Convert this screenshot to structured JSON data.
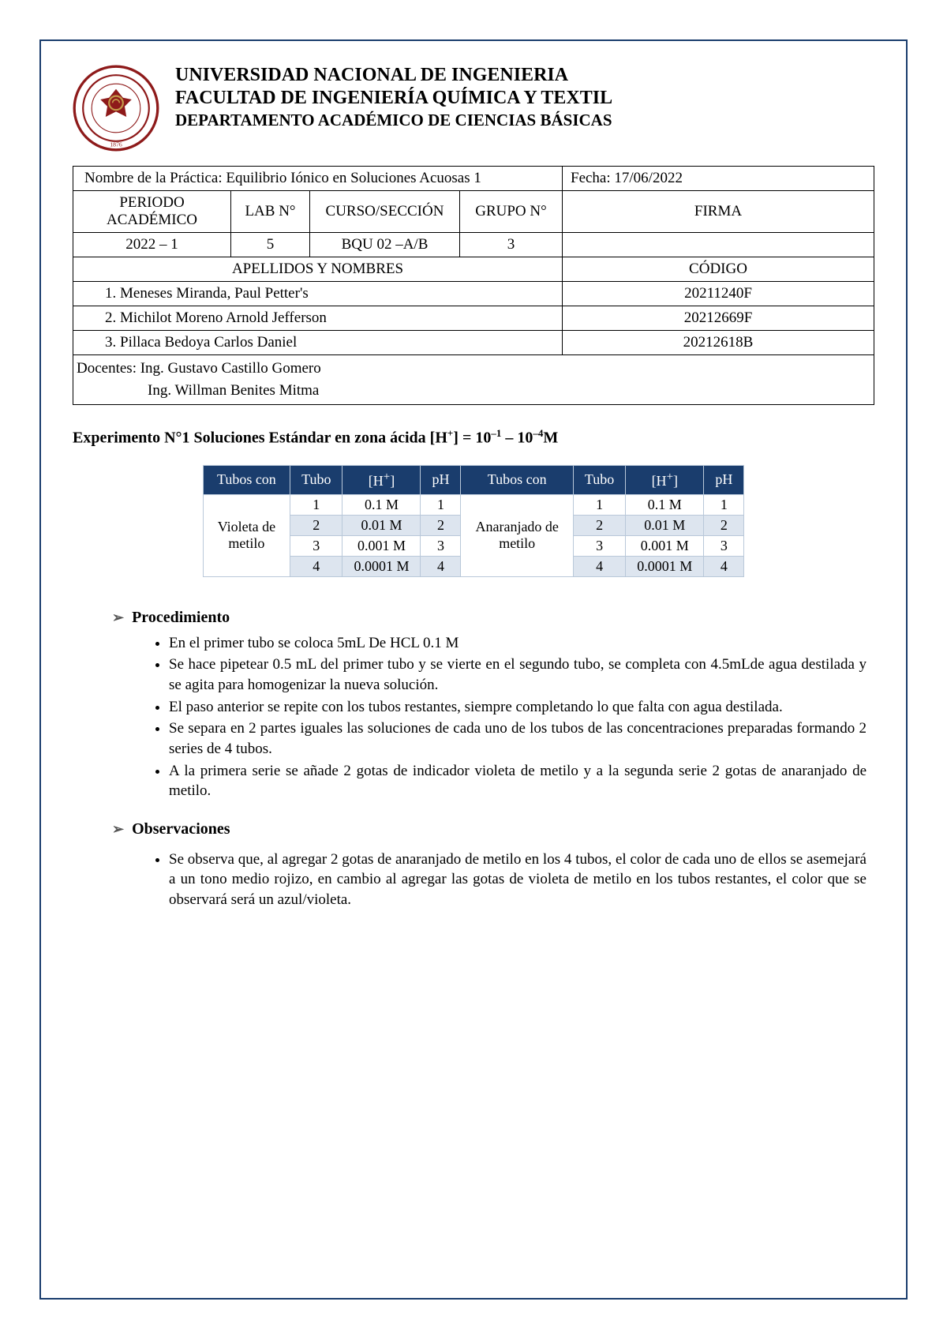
{
  "header": {
    "line1": "UNIVERSIDAD NACIONAL DE INGENIERIA",
    "line2": "FACULTAD DE INGENIERÍA QUÍMICA Y TEXTIL",
    "line3": "DEPARTAMENTO ACADÉMICO DE CIENCIAS BÁSICAS",
    "seal_colors": {
      "outer": "#8e1a1a",
      "inner": "#c49b4a",
      "ring_text": "#8e1a1a"
    }
  },
  "info": {
    "practice_label": "Nombre de la Práctica: Equilibrio Iónico en Soluciones Acuosas 1",
    "date_label": "Fecha: 17/06/2022",
    "periodo_head": "PERIODO ACADÉMICO",
    "lab_head": "LAB N°",
    "curso_head": "CURSO/SECCIÓN",
    "grupo_head": "GRUPO N°",
    "firma_head": "FIRMA",
    "periodo_val": "2022 – 1",
    "lab_val": "5",
    "curso_val": "BQU 02 –A/B",
    "grupo_val": "3",
    "names_head": "APELLIDOS Y NOMBRES",
    "codigo_head": "CÓDIGO",
    "students": [
      {
        "n": "1.   Meneses Miranda, Paul Petter's",
        "code": "20211240F"
      },
      {
        "n": "2.   Michilot Moreno Arnold Jefferson",
        "code": "20212669F"
      },
      {
        "n": "3.   Pillaca Bedoya Carlos Daniel",
        "code": "20212618B"
      }
    ],
    "docentes_line1": "Docentes: Ing. Gustavo Castillo Gomero",
    "docentes_line2": "Ing. Willman Benites Mitma"
  },
  "experiment": {
    "title_prefix": "Experimento N°1 Soluciones Estándar en zona ácida [H",
    "title_sup1": "+",
    "title_mid": "] = 10",
    "title_sup2": "–1",
    "title_mid2": " – 10",
    "title_sup3": "–4",
    "title_suffix": "M"
  },
  "data_table": {
    "headers": {
      "tubos_con": "Tubos con",
      "tubo": "Tubo",
      "h_plus": "[H",
      "h_plus_sup": "+",
      "h_plus_close": "]",
      "ph": "pH"
    },
    "left_label": "Violeta de metilo",
    "right_label": "Anaranjado de metilo",
    "rows": [
      {
        "tubo": "1",
        "h": "0.1 M",
        "ph": "1"
      },
      {
        "tubo": "2",
        "h": "0.01 M",
        "ph": "2"
      },
      {
        "tubo": "3",
        "h": "0.001 M",
        "ph": "3"
      },
      {
        "tubo": "4",
        "h": "0.0001 M",
        "ph": "4"
      }
    ],
    "colors": {
      "header_bg": "#1a3d6d",
      "header_fg": "#ffffff",
      "border": "#b9c8d9",
      "stripe": "#dde5ef"
    }
  },
  "sections": {
    "proc_head": "Procedimiento",
    "proc_items": [
      "En el primer tubo se coloca 5mL De HCL 0.1 M",
      "Se hace pipetear 0.5 mL del primer tubo y se vierte en el segundo tubo, se completa con 4.5mLde agua destilada y se agita para homogenizar la nueva solución.",
      "El paso anterior se repite con los tubos restantes, siempre completando lo que falta con agua destilada.",
      "Se separa en 2 partes iguales las soluciones de cada uno de los tubos de las concentraciones preparadas formando 2 series de 4 tubos.",
      "A la primera serie se añade 2 gotas de indicador violeta de metilo y a la segunda serie 2 gotas de anaranjado de metilo."
    ],
    "obs_head": "Observaciones",
    "obs_items": [
      "Se observa que, al agregar 2 gotas de anaranjado de metilo en los 4 tubos, el color de cada uno de ellos se asemejará a un tono medio rojizo, en cambio al agregar las gotas de violeta de metilo en los tubos restantes, el color que se observará será un azul/violeta."
    ]
  }
}
